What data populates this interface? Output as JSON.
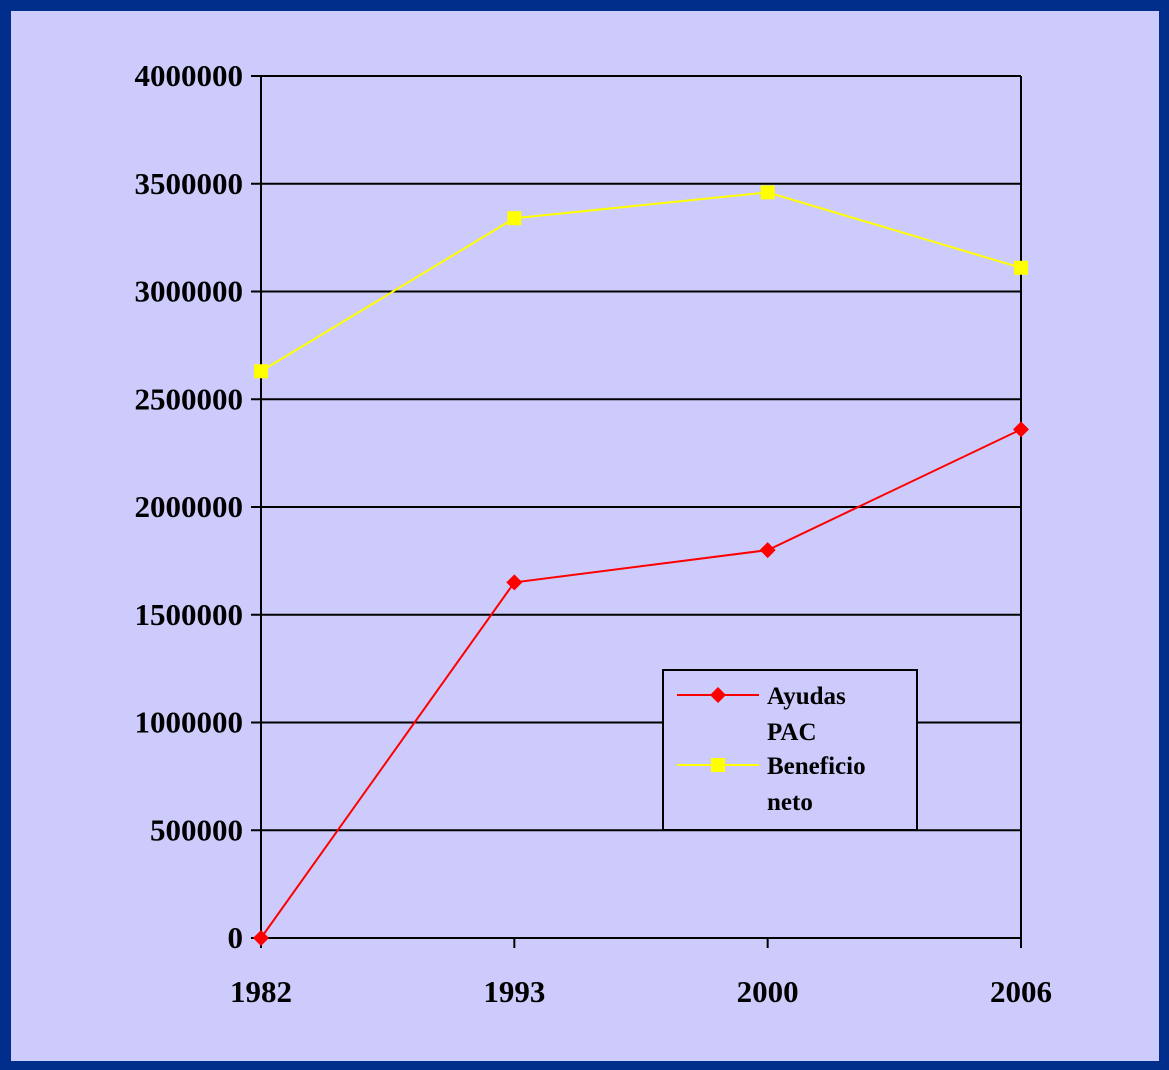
{
  "background_color": "#002e8a",
  "panel_color": "#cccbfc",
  "chart_data": {
    "type": "line",
    "title": "",
    "xlabel": "",
    "ylabel": "",
    "categories": [
      "1982",
      "1993",
      "2000",
      "2006"
    ],
    "ylim": [
      0,
      4000000
    ],
    "yticks": [
      "0",
      "500000",
      "1000000",
      "1500000",
      "2000000",
      "2500000",
      "3000000",
      "3500000",
      "4000000"
    ],
    "grid": true,
    "legend_position": "lower-right",
    "series": [
      {
        "name": "Ayudas PAC",
        "legend_lines": [
          "Ayudas",
          "PAC"
        ],
        "color": "#ff0000",
        "marker": "diamond",
        "values": [
          0,
          1650000,
          1800000,
          2360000
        ]
      },
      {
        "name": "Beneficio neto",
        "legend_lines": [
          "Beneficio",
          "neto"
        ],
        "color": "#ffff00",
        "marker": "square",
        "values": [
          2630000,
          3340000,
          3460000,
          3110000
        ]
      }
    ]
  }
}
